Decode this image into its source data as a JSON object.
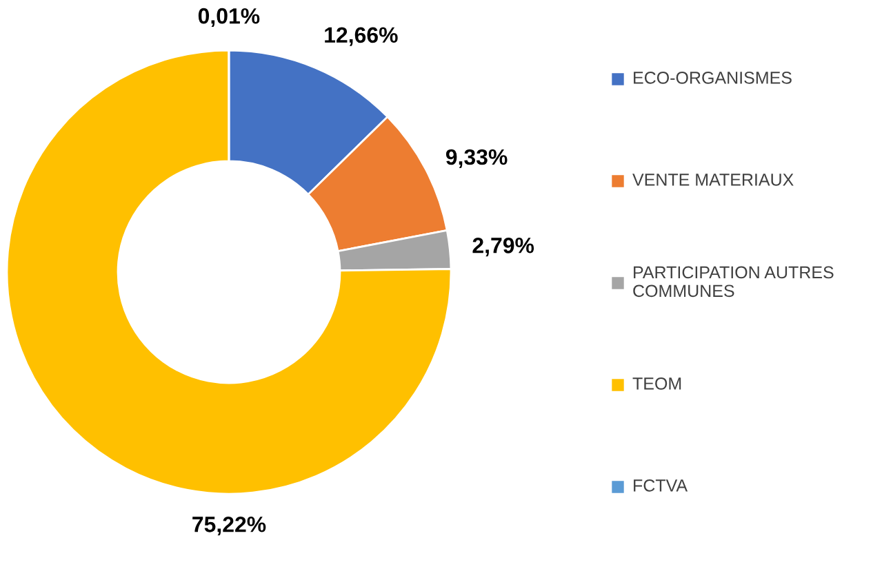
{
  "chart_data": {
    "type": "donut",
    "categories": [
      "ECO-ORGANISMES",
      "VENTE MATERIAUX",
      "PARTICIPATION AUTRES COMMUNES",
      "TEOM",
      "FCTVA"
    ],
    "values": [
      12.66,
      9.33,
      2.79,
      75.22,
      0.01
    ],
    "colors": [
      "#4472c4",
      "#ed7d31",
      "#a5a5a5",
      "#ffc000",
      "#5b9bd5"
    ],
    "value_labels": [
      "12,66%",
      "9,33%",
      "2,79%",
      "75,22%",
      "0,01%"
    ],
    "legend": "right"
  }
}
